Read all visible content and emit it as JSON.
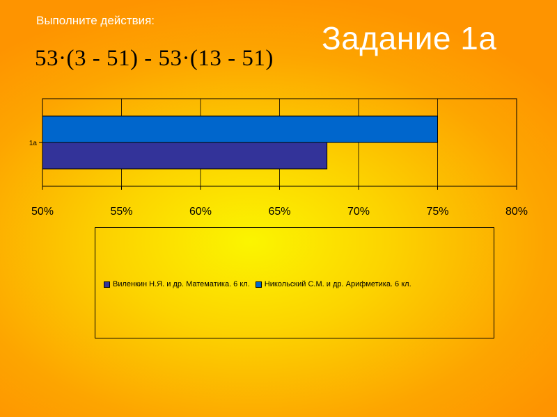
{
  "slide": {
    "instruction": "Выполните действия:",
    "title": "Задание 1а",
    "expression": "53·(3 - 51) - 53·(13 - 51)"
  },
  "chart_data": {
    "type": "bar",
    "orientation": "horizontal",
    "categories": [
      "1а"
    ],
    "series": [
      {
        "name": "Виленкин Н.Я. и др. Математика. 6 кл.",
        "values": [
          0.68
        ],
        "color": "#333399"
      },
      {
        "name": "Никольский С.М. и др. Арифметика. 6 кл.",
        "values": [
          0.75
        ],
        "color": "#0066cc"
      }
    ],
    "xlim": [
      0.5,
      0.8
    ],
    "x_ticks": [
      "50%",
      "55%",
      "60%",
      "65%",
      "70%",
      "75%",
      "80%"
    ],
    "x_tick_values": [
      0.5,
      0.55,
      0.6,
      0.65,
      0.7,
      0.75,
      0.8
    ],
    "grid": true,
    "legend_position": "bottom"
  }
}
